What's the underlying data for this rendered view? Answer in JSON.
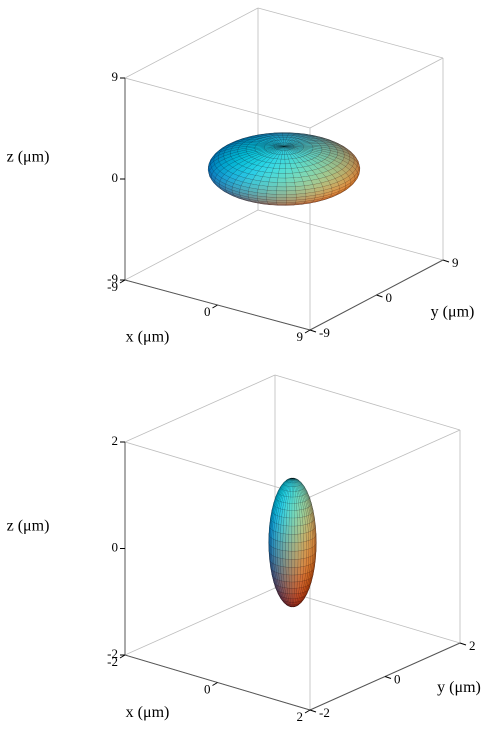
{
  "chart_data": [
    {
      "type": "ellipsoid3d",
      "xlabel": "x (μm)",
      "ylabel": "y (μm)",
      "zlabel": "z (μm)",
      "xlim": [
        -9,
        9
      ],
      "ylim": [
        -9,
        9
      ],
      "zlim": [
        -9,
        9
      ],
      "xticks": [
        -9,
        0,
        9
      ],
      "yticks": [
        -9,
        0,
        9
      ],
      "zticks": [
        -9,
        0,
        9
      ],
      "center": [
        0,
        0,
        0
      ],
      "radii": [
        6,
        6,
        2
      ]
    },
    {
      "type": "ellipsoid3d",
      "xlabel": "x (μm)",
      "ylabel": "y (μm)",
      "zlabel": "z (μm)",
      "xlim": [
        -2,
        2
      ],
      "ylim": [
        -2,
        2
      ],
      "zlim": [
        -2,
        2
      ],
      "xticks": [
        -2,
        0,
        2
      ],
      "yticks": [
        -2,
        0,
        2
      ],
      "zticks": [
        -2,
        0,
        2
      ],
      "center": [
        0,
        0,
        0
      ],
      "radii": [
        0.4,
        0.4,
        1.2
      ]
    }
  ]
}
